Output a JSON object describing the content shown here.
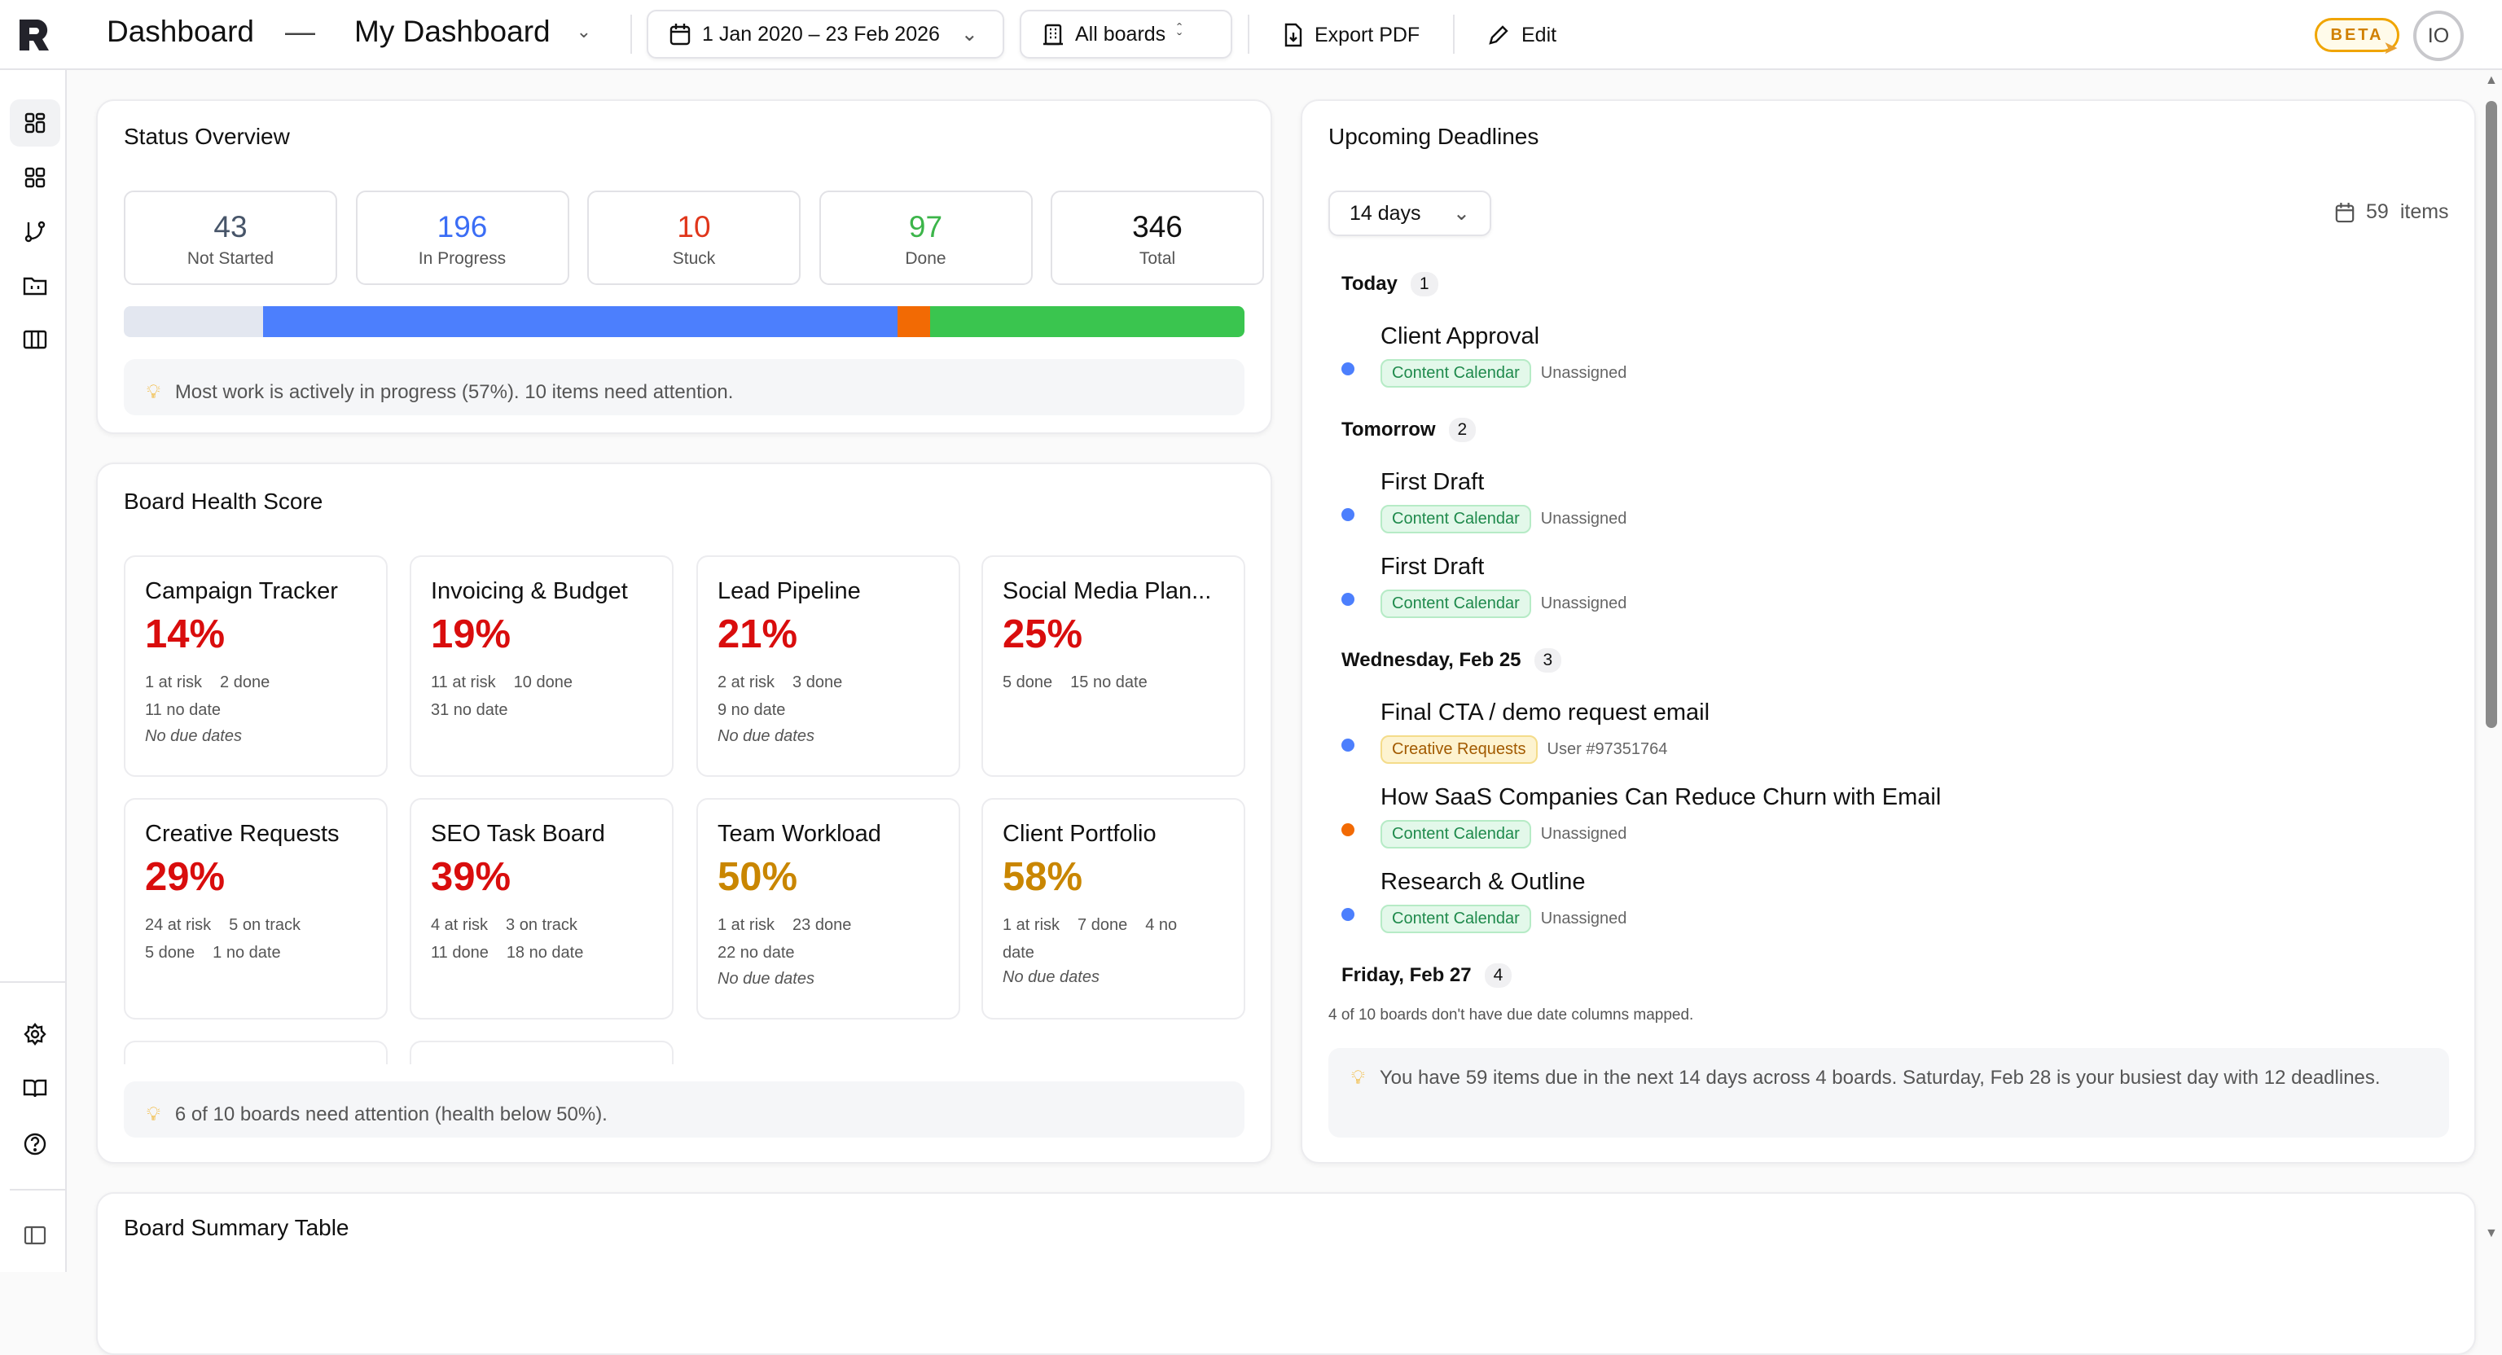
{
  "header": {
    "title": "Dashboard",
    "separator": "—",
    "dashboard_name": "My Dashboard",
    "date_range": "1 Jan 2020 – 23 Feb 2026",
    "boards_filter": "All boards",
    "export_label": "Export PDF",
    "edit_label": "Edit",
    "beta_label": "BETA",
    "avatar_initials": "IO"
  },
  "sidebar": {
    "items": [
      {
        "icon": "dashboard-icon",
        "active": true
      },
      {
        "icon": "grid-icon"
      },
      {
        "icon": "workflow-icon"
      },
      {
        "icon": "folder-icon"
      },
      {
        "icon": "columns-icon"
      }
    ],
    "bottom": [
      {
        "icon": "gear-icon"
      },
      {
        "icon": "book-icon"
      },
      {
        "icon": "help-icon"
      },
      {
        "icon": "sidebar-toggle-icon"
      }
    ]
  },
  "status": {
    "title": "Status Overview",
    "stats": [
      {
        "value": "43",
        "label": "Not Started",
        "color": "#475569",
        "bar": "#e3e7f0",
        "count": 43
      },
      {
        "value": "196",
        "label": "In Progress",
        "color": "#3b6df5",
        "bar": "#4c7ffd",
        "count": 196
      },
      {
        "value": "10",
        "label": "Stuck",
        "color": "#e0361b",
        "bar": "#f26a04",
        "count": 10
      },
      {
        "value": "97",
        "label": "Done",
        "color": "#3cb54a",
        "bar": "#3ac54f",
        "count": 97
      },
      {
        "value": "346",
        "label": "Total",
        "color": "#111111"
      }
    ],
    "note": "Most work is actively in progress (57%). 10 items need attention."
  },
  "health": {
    "title": "Board Health Score",
    "boards": [
      {
        "name": "Campaign Tracker",
        "pct": "14%",
        "color": "#d90d0d",
        "meta1": [
          "1 at risk",
          "2 done"
        ],
        "meta2": [
          "11 no date"
        ],
        "no_due": "No due dates"
      },
      {
        "name": "Invoicing & Budget",
        "pct": "19%",
        "color": "#d90d0d",
        "meta1": [
          "11 at risk",
          "10 done"
        ],
        "meta2": [
          "31 no date"
        ]
      },
      {
        "name": "Lead Pipeline",
        "pct": "21%",
        "color": "#d90d0d",
        "meta1": [
          "2 at risk",
          "3 done"
        ],
        "meta2": [
          "9 no date"
        ],
        "no_due": "No due dates"
      },
      {
        "name": "Social Media Plan...",
        "pct": "25%",
        "color": "#d90d0d",
        "meta1": [
          "5 done",
          "15 no date"
        ]
      },
      {
        "name": "Creative Requests",
        "pct": "29%",
        "color": "#d90d0d",
        "meta1": [
          "24 at risk",
          "5 on track"
        ],
        "meta2": [
          "5 done",
          "1 no date"
        ]
      },
      {
        "name": "SEO Task Board",
        "pct": "39%",
        "color": "#d90d0d",
        "meta1": [
          "4 at risk",
          "3 on track"
        ],
        "meta2": [
          "11 done",
          "18 no date"
        ]
      },
      {
        "name": "Team Workload",
        "pct": "50%",
        "color": "#c98600",
        "meta1": [
          "1 at risk",
          "23 done"
        ],
        "meta2": [
          "22 no date"
        ],
        "no_due": "No due dates"
      },
      {
        "name": "Client Portfolio",
        "pct": "58%",
        "color": "#c98600",
        "meta1": [
          "1 at risk",
          "7 done",
          "4 no date"
        ],
        "no_due": "No due dates"
      }
    ],
    "note": "6 of 10 boards need attention (health below 50%)."
  },
  "deadlines": {
    "title": "Upcoming Deadlines",
    "range": "14 days",
    "items_count": "59",
    "items_label": "items",
    "groups": [
      {
        "label": "Today",
        "count": "1",
        "items": [
          {
            "title": "Client Approval",
            "board": "Content Calendar",
            "board_type": "green",
            "assignee": "Unassigned",
            "dot": "#4c7ffd"
          }
        ]
      },
      {
        "label": "Tomorrow",
        "count": "2",
        "items": [
          {
            "title": "First Draft",
            "board": "Content Calendar",
            "board_type": "green",
            "assignee": "Unassigned",
            "dot": "#4c7ffd"
          },
          {
            "title": "First Draft",
            "board": "Content Calendar",
            "board_type": "green",
            "assignee": "Unassigned",
            "dot": "#4c7ffd"
          }
        ]
      },
      {
        "label": "Wednesday, Feb 25",
        "count": "3",
        "items": [
          {
            "title": "Final CTA / demo request email",
            "board": "Creative Requests",
            "board_type": "amber",
            "assignee": "User #97351764",
            "dot": "#4c7ffd"
          },
          {
            "title": "How SaaS Companies Can Reduce Churn with Email",
            "board": "Content Calendar",
            "board_type": "green",
            "assignee": "Unassigned",
            "dot": "#f26a04"
          },
          {
            "title": "Research & Outline",
            "board": "Content Calendar",
            "board_type": "green",
            "assignee": "Unassigned",
            "dot": "#4c7ffd"
          }
        ]
      },
      {
        "label": "Friday, Feb 27",
        "count": "4",
        "items": []
      }
    ],
    "unmapped_note": "4 of 10 boards don't have due date columns mapped.",
    "insight": "You have 59 items due in the next 14 days across 4 boards. Saturday, Feb 28 is your busiest day with 12 deadlines."
  },
  "summary": {
    "title": "Board Summary Table"
  }
}
